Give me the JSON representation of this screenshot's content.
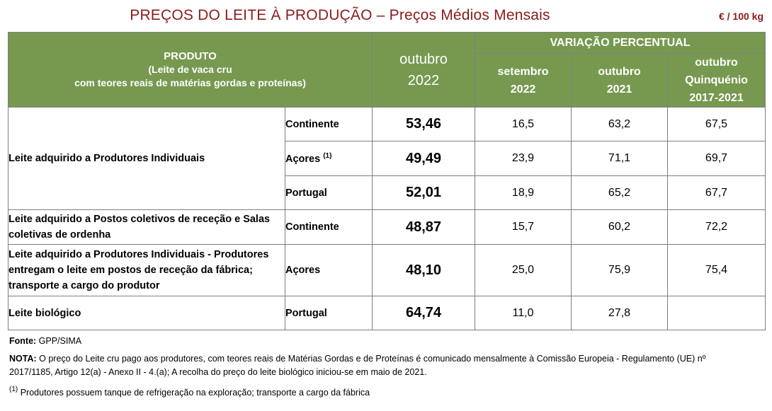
{
  "header": {
    "title_main": "PREÇOS DO LEITE À PRODUÇÃO",
    "title_sep": " – ",
    "title_sub": "Preços Médios Mensais",
    "unit": "€ / 100 kg"
  },
  "table": {
    "col_product": "PRODUTO",
    "col_product_sub1": "(Leite de vaca cru",
    "col_product_sub2": "com teores reais de matérias gordas e proteínas)",
    "col_month": "outubro",
    "col_year": "2022",
    "col_variation": "VARIAÇÃO PERCENTUAL",
    "var_cols": [
      {
        "l1": "setembro",
        "l2": "2022",
        "l3": ""
      },
      {
        "l1": "outubro",
        "l2": "2021",
        "l3": ""
      },
      {
        "l1": "outubro",
        "l2": "Quinquénio",
        "l3": "2017-2021"
      }
    ],
    "rows": [
      {
        "desc": "Leite adquirido a Produtores Individuais",
        "region": "Continente",
        "sup": "",
        "price": "53,46",
        "v1": "16,5",
        "v2": "63,2",
        "v3": "67,5"
      },
      {
        "desc": "",
        "region": "Açores",
        "sup": "(1)",
        "price": "49,49",
        "v1": "23,9",
        "v2": "71,1",
        "v3": "69,7"
      },
      {
        "desc": "",
        "region": "Portugal",
        "sup": "",
        "price": "52,01",
        "v1": "18,9",
        "v2": "65,2",
        "v3": "67,7"
      },
      {
        "desc": "Leite adquirido a Postos coletivos de receção e Salas coletivas de ordenha",
        "region": "Continente",
        "sup": "",
        "price": "48,87",
        "v1": "15,7",
        "v2": "60,2",
        "v3": "72,2"
      },
      {
        "desc": "Leite adquirido a Produtores Individuais - Produtores entregam o leite em postos de receção da fábrica; transporte a cargo do produtor",
        "region": "Açores",
        "sup": "",
        "price": "48,10",
        "v1": "25,0",
        "v2": "75,9",
        "v3": "75,4"
      },
      {
        "desc": "Leite biológico",
        "region": "Portugal",
        "sup": "",
        "price": "64,74",
        "v1": "11,0",
        "v2": "27,8",
        "v3": ""
      }
    ]
  },
  "footer": {
    "source_label": "Fonte:",
    "source_text": " GPP/SIMA",
    "note_label": "NOTA:",
    "note_text": " O preço do Leite cru pago aos produtores, com teores reais de Matérias Gordas e de Proteínas é comunicado mensalmente à Comissão Europeia - Regulamento (UE) nº 2017/1185, Artigo 12(a) - Anexo II - 4.(a); A recolha do preço do leite biológico iniciou-se em maio de 2021.",
    "fn_mark": "(1)",
    "fn_text": " Produtores possuem tanque de refrigeração na exploração; transporte a cargo da fábrica"
  }
}
